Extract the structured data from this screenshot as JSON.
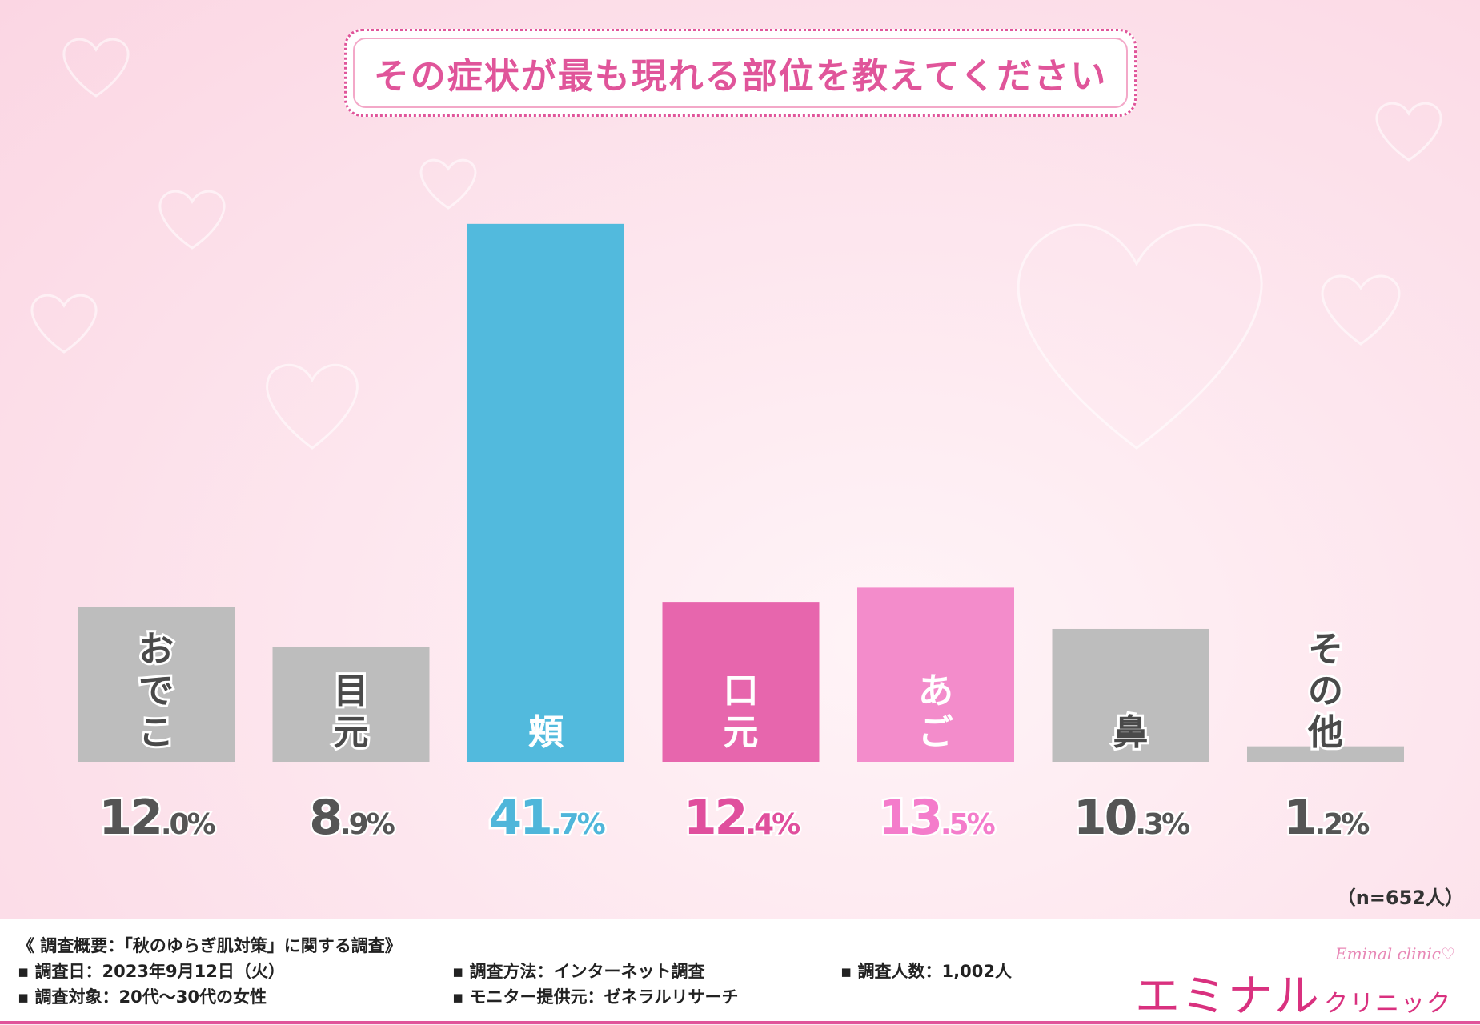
{
  "chart_data": {
    "type": "bar",
    "title": "その症状が最も現れる部位を教えてください",
    "categories": [
      "おでこ",
      "目元",
      "頬",
      "口元",
      "あご",
      "鼻",
      "その他"
    ],
    "values": [
      12.0,
      8.9,
      41.7,
      12.4,
      13.5,
      10.3,
      1.2
    ],
    "value_labels": [
      {
        "int": "12",
        "dec": ".0%"
      },
      {
        "int": "8",
        "dec": ".9%"
      },
      {
        "int": "41",
        "dec": ".7%"
      },
      {
        "int": "12",
        "dec": ".4%"
      },
      {
        "int": "13",
        "dec": ".5%"
      },
      {
        "int": "10",
        "dec": ".3%"
      },
      {
        "int": "1",
        "dec": ".2%"
      }
    ],
    "colors": [
      "#bdbdbd",
      "#bdbdbd",
      "#52badd",
      "#e766ad",
      "#f38ccb",
      "#bdbdbd",
      "#bdbdbd"
    ],
    "label_colors": [
      "#555555",
      "#555555",
      "#4fb6da",
      "#e04f9d",
      "#f47ccb",
      "#555555",
      "#555555"
    ],
    "ylim": [
      0,
      42
    ],
    "sample_note": "（n=652人）"
  },
  "footer": {
    "survey_title": "《 調査概要：「秋のゆらぎ肌対策」に関する調査》",
    "date": "▪ 調査日：2023年9月12日（火）",
    "target": "▪ 調査対象：20代〜30代の女性",
    "method": "▪ 調査方法：インターネット調査",
    "provider": "▪ モニター提供元：ゼネラルリサーチ",
    "count": "▪ 調査人数：1,002人"
  },
  "logo": {
    "main": "エミナル",
    "small": "クリニック",
    "sub": "Eminal clinic♡"
  },
  "colors": {
    "accent": "#e0559a",
    "background": "#fde8ef"
  }
}
